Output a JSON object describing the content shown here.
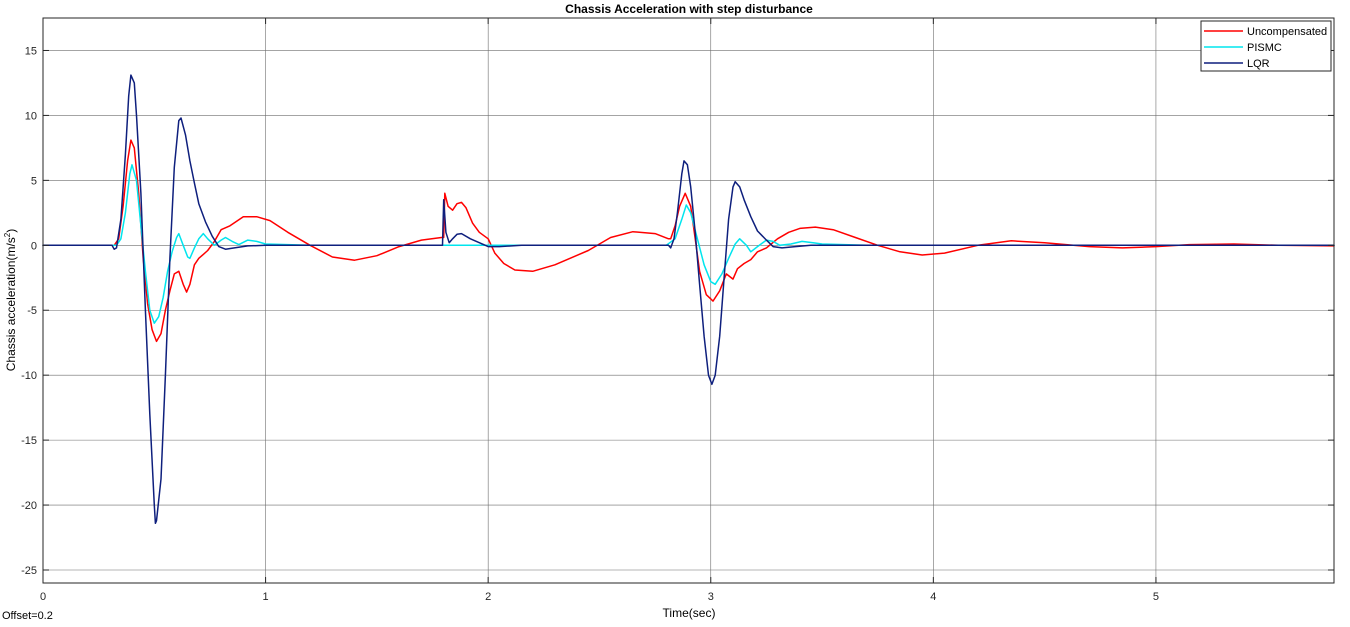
{
  "chart_data": {
    "type": "line",
    "title": "Chassis Acceleration with step disturbance",
    "xlabel": "Time(sec)",
    "ylabel": "Chassis acceleration(m/s",
    "ylabel_sup": "2",
    "ylabel_end": ")",
    "xlim": [
      0,
      5.8
    ],
    "ylim": [
      -26,
      17.5
    ],
    "xticks": [
      0,
      1,
      2,
      3,
      4,
      5
    ],
    "yticks": [
      15,
      10,
      5,
      0,
      -5,
      -10,
      -15,
      -20,
      -25
    ],
    "grid": true,
    "legend_position": "top-right",
    "series": [
      {
        "name": "Uncompensated",
        "color": "#ff0000",
        "points": [
          [
            0,
            0
          ],
          [
            0.32,
            0
          ],
          [
            0.34,
            0.5
          ],
          [
            0.36,
            3
          ],
          [
            0.38,
            6.5
          ],
          [
            0.395,
            8.1
          ],
          [
            0.41,
            7.5
          ],
          [
            0.43,
            4
          ],
          [
            0.45,
            -1
          ],
          [
            0.47,
            -4.5
          ],
          [
            0.49,
            -6.5
          ],
          [
            0.51,
            -7.4
          ],
          [
            0.53,
            -6.8
          ],
          [
            0.55,
            -5
          ],
          [
            0.57,
            -3.5
          ],
          [
            0.59,
            -2.2
          ],
          [
            0.61,
            -2
          ],
          [
            0.63,
            -3
          ],
          [
            0.645,
            -3.6
          ],
          [
            0.66,
            -3
          ],
          [
            0.68,
            -1.5
          ],
          [
            0.7,
            -1
          ],
          [
            0.72,
            -0.7
          ],
          [
            0.74,
            -0.4
          ],
          [
            0.77,
            0.3
          ],
          [
            0.8,
            1.2
          ],
          [
            0.84,
            1.5
          ],
          [
            0.9,
            2.2
          ],
          [
            0.96,
            2.2
          ],
          [
            1.02,
            1.9
          ],
          [
            1.1,
            1.0
          ],
          [
            1.2,
            0
          ],
          [
            1.3,
            -0.9
          ],
          [
            1.4,
            -1.15
          ],
          [
            1.5,
            -0.8
          ],
          [
            1.6,
            -0.1
          ],
          [
            1.7,
            0.4
          ],
          [
            1.79,
            0.6
          ],
          [
            1.8,
            0.6
          ],
          [
            1.805,
            4.0
          ],
          [
            1.82,
            3.0
          ],
          [
            1.84,
            2.7
          ],
          [
            1.86,
            3.2
          ],
          [
            1.88,
            3.3
          ],
          [
            1.9,
            2.9
          ],
          [
            1.93,
            1.7
          ],
          [
            1.96,
            1.0
          ],
          [
            2.0,
            0.5
          ],
          [
            2.03,
            -0.6
          ],
          [
            2.07,
            -1.4
          ],
          [
            2.12,
            -1.9
          ],
          [
            2.2,
            -2.0
          ],
          [
            2.3,
            -1.5
          ],
          [
            2.45,
            -0.4
          ],
          [
            2.55,
            0.6
          ],
          [
            2.65,
            1.05
          ],
          [
            2.75,
            0.9
          ],
          [
            2.81,
            0.5
          ],
          [
            2.82,
            0.5
          ],
          [
            2.84,
            1.5
          ],
          [
            2.86,
            3
          ],
          [
            2.885,
            4.0
          ],
          [
            2.91,
            3
          ],
          [
            2.93,
            0.5
          ],
          [
            2.95,
            -2
          ],
          [
            2.98,
            -3.8
          ],
          [
            3.01,
            -4.3
          ],
          [
            3.04,
            -3.5
          ],
          [
            3.07,
            -2.2
          ],
          [
            3.1,
            -2.6
          ],
          [
            3.12,
            -1.8
          ],
          [
            3.15,
            -1.4
          ],
          [
            3.18,
            -1.1
          ],
          [
            3.21,
            -0.5
          ],
          [
            3.25,
            -0.2
          ],
          [
            3.3,
            0.5
          ],
          [
            3.35,
            1.0
          ],
          [
            3.4,
            1.3
          ],
          [
            3.47,
            1.4
          ],
          [
            3.55,
            1.2
          ],
          [
            3.65,
            0.6
          ],
          [
            3.75,
            0
          ],
          [
            3.85,
            -0.5
          ],
          [
            3.95,
            -0.75
          ],
          [
            4.05,
            -0.6
          ],
          [
            4.2,
            0
          ],
          [
            4.35,
            0.35
          ],
          [
            4.5,
            0.2
          ],
          [
            4.7,
            -0.1
          ],
          [
            4.85,
            -0.2
          ],
          [
            5.0,
            -0.1
          ],
          [
            5.15,
            0.05
          ],
          [
            5.35,
            0.1
          ],
          [
            5.55,
            0
          ],
          [
            5.8,
            -0.05
          ]
        ]
      },
      {
        "name": "PISMC",
        "color": "#00e5ee",
        "points": [
          [
            0,
            0
          ],
          [
            0.33,
            0
          ],
          [
            0.35,
            0.5
          ],
          [
            0.37,
            2.5
          ],
          [
            0.39,
            5.5
          ],
          [
            0.4,
            6.2
          ],
          [
            0.42,
            5
          ],
          [
            0.44,
            1.5
          ],
          [
            0.46,
            -2
          ],
          [
            0.48,
            -5
          ],
          [
            0.5,
            -6
          ],
          [
            0.52,
            -5.5
          ],
          [
            0.54,
            -4
          ],
          [
            0.56,
            -2
          ],
          [
            0.58,
            -0.5
          ],
          [
            0.6,
            0.6
          ],
          [
            0.61,
            0.9
          ],
          [
            0.63,
            0
          ],
          [
            0.65,
            -0.9
          ],
          [
            0.66,
            -1.0
          ],
          [
            0.68,
            -0.2
          ],
          [
            0.7,
            0.5
          ],
          [
            0.72,
            0.9
          ],
          [
            0.74,
            0.5
          ],
          [
            0.77,
            0
          ],
          [
            0.8,
            0.4
          ],
          [
            0.82,
            0.6
          ],
          [
            0.85,
            0.3
          ],
          [
            0.88,
            0.05
          ],
          [
            0.92,
            0.4
          ],
          [
            0.96,
            0.3
          ],
          [
            1.0,
            0.1
          ],
          [
            1.1,
            0.05
          ],
          [
            1.2,
            0
          ],
          [
            2.8,
            0
          ],
          [
            2.84,
            0.5
          ],
          [
            2.87,
            2
          ],
          [
            2.89,
            3.1
          ],
          [
            2.91,
            2.5
          ],
          [
            2.94,
            0.5
          ],
          [
            2.97,
            -1.5
          ],
          [
            3.0,
            -2.8
          ],
          [
            3.02,
            -3.0
          ],
          [
            3.05,
            -2.2
          ],
          [
            3.08,
            -1
          ],
          [
            3.11,
            0.1
          ],
          [
            3.13,
            0.5
          ],
          [
            3.16,
            0
          ],
          [
            3.18,
            -0.5
          ],
          [
            3.21,
            -0.1
          ],
          [
            3.25,
            0.4
          ],
          [
            3.28,
            0.3
          ],
          [
            3.31,
            0
          ],
          [
            3.36,
            0.1
          ],
          [
            3.41,
            0.3
          ],
          [
            3.46,
            0.2
          ],
          [
            3.5,
            0.1
          ],
          [
            3.6,
            0.05
          ],
          [
            3.7,
            0
          ],
          [
            5.8,
            0
          ]
        ]
      },
      {
        "name": "LQR",
        "color": "#0e1f7d",
        "points": [
          [
            0,
            0
          ],
          [
            0.31,
            0
          ],
          [
            0.32,
            -0.3
          ],
          [
            0.33,
            -0.2
          ],
          [
            0.35,
            2
          ],
          [
            0.37,
            7
          ],
          [
            0.385,
            11.5
          ],
          [
            0.395,
            13.1
          ],
          [
            0.41,
            12.5
          ],
          [
            0.42,
            10
          ],
          [
            0.44,
            4
          ],
          [
            0.46,
            -5
          ],
          [
            0.48,
            -13
          ],
          [
            0.5,
            -20
          ],
          [
            0.505,
            -21.4
          ],
          [
            0.51,
            -21.2
          ],
          [
            0.53,
            -18
          ],
          [
            0.55,
            -10
          ],
          [
            0.57,
            -1
          ],
          [
            0.59,
            6
          ],
          [
            0.61,
            9.6
          ],
          [
            0.62,
            9.8
          ],
          [
            0.64,
            8.5
          ],
          [
            0.66,
            6.5
          ],
          [
            0.68,
            4.8
          ],
          [
            0.7,
            3.2
          ],
          [
            0.73,
            1.8
          ],
          [
            0.76,
            0.7
          ],
          [
            0.79,
            -0.1
          ],
          [
            0.82,
            -0.3
          ],
          [
            0.86,
            -0.2
          ],
          [
            0.92,
            -0.05
          ],
          [
            1.0,
            0
          ],
          [
            1.795,
            0
          ],
          [
            1.8,
            3.5
          ],
          [
            1.81,
            1.0
          ],
          [
            1.825,
            0.2
          ],
          [
            1.84,
            0.5
          ],
          [
            1.86,
            0.85
          ],
          [
            1.88,
            0.9
          ],
          [
            1.92,
            0.5
          ],
          [
            1.96,
            0.2
          ],
          [
            2.0,
            -0.1
          ],
          [
            2.05,
            -0.1
          ],
          [
            2.15,
            0
          ],
          [
            2.81,
            0
          ],
          [
            2.82,
            -0.2
          ],
          [
            2.835,
            0.5
          ],
          [
            2.85,
            2.5
          ],
          [
            2.87,
            5.5
          ],
          [
            2.88,
            6.5
          ],
          [
            2.895,
            6.2
          ],
          [
            2.91,
            4.5
          ],
          [
            2.93,
            1
          ],
          [
            2.95,
            -3
          ],
          [
            2.97,
            -7
          ],
          [
            2.99,
            -10
          ],
          [
            3.005,
            -10.7
          ],
          [
            3.02,
            -10
          ],
          [
            3.04,
            -7
          ],
          [
            3.06,
            -2.5
          ],
          [
            3.08,
            2
          ],
          [
            3.1,
            4.5
          ],
          [
            3.11,
            4.9
          ],
          [
            3.13,
            4.5
          ],
          [
            3.15,
            3.5
          ],
          [
            3.18,
            2.2
          ],
          [
            3.21,
            1.1
          ],
          [
            3.25,
            0.4
          ],
          [
            3.28,
            -0.1
          ],
          [
            3.32,
            -0.2
          ],
          [
            3.38,
            -0.1
          ],
          [
            3.45,
            0
          ],
          [
            5.8,
            0
          ]
        ]
      }
    ]
  },
  "offset_note": "Offset=0.2"
}
